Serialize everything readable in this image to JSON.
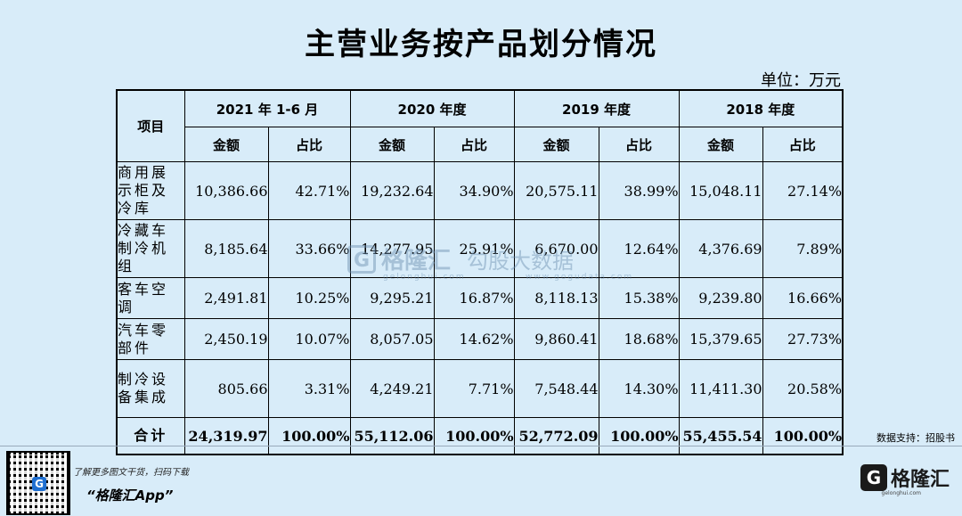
{
  "title": "主营业务按产品划分情况",
  "unit": "单位：万元",
  "source": "数据支持：招股书",
  "promo_text": "了解更多图文干货，扫码下载",
  "app_text": "“格隆汇App”",
  "brand": {
    "logo_letter": "G",
    "name": "格隆汇",
    "url": "gelonghui.com"
  },
  "watermark": {
    "name": "格隆汇",
    "sub": "勾股大数据",
    "url": "gelonghui.com",
    "url2": "www.gogudata.com"
  },
  "chart_data": {
    "type": "table",
    "header_item": "项目",
    "periods": [
      "2021 年 1-6 月",
      "2020 年度",
      "2019 年度",
      "2018 年度"
    ],
    "subheaders": [
      "金额",
      "占比"
    ],
    "rows": [
      {
        "item": "商用展示柜及冷库",
        "values": [
          "10,386.66",
          "42.71%",
          "19,232.64",
          "34.90%",
          "20,575.11",
          "38.99%",
          "15,048.11",
          "27.14%"
        ]
      },
      {
        "item": "冷藏车制冷机组",
        "values": [
          "8,185.64",
          "33.66%",
          "14,277.95",
          "25.91%",
          "6,670.00",
          "12.64%",
          "4,376.69",
          "7.89%"
        ]
      },
      {
        "item": "客车空调",
        "values": [
          "2,491.81",
          "10.25%",
          "9,295.21",
          "16.87%",
          "8,118.13",
          "15.38%",
          "9,239.80",
          "16.66%"
        ]
      },
      {
        "item": "汽车零部件",
        "values": [
          "2,450.19",
          "10.07%",
          "8,057.05",
          "14.62%",
          "9,860.41",
          "18.68%",
          "15,379.65",
          "27.73%"
        ]
      },
      {
        "item": "制冷设备集成",
        "values": [
          "805.66",
          "3.31%",
          "4,249.21",
          "7.71%",
          "7,548.44",
          "14.30%",
          "11,411.30",
          "20.58%"
        ]
      }
    ],
    "total": {
      "item": "合计",
      "values": [
        "24,319.97",
        "100.00%",
        "55,112.06",
        "100.00%",
        "52,772.09",
        "100.00%",
        "55,455.54",
        "100.00%"
      ]
    }
  }
}
